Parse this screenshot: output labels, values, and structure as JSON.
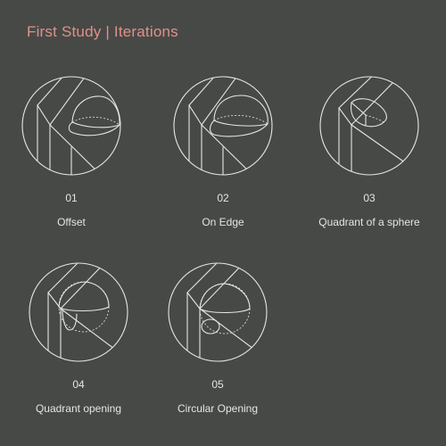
{
  "title": "First Study | Iterations",
  "iterations": [
    {
      "number": "01",
      "label": "Offset"
    },
    {
      "number": "02",
      "label": "On Edge"
    },
    {
      "number": "03",
      "label": "Quadrant of a sphere"
    },
    {
      "number": "04",
      "label": "Quadrant opening"
    },
    {
      "number": "05",
      "label": "Circular Opening"
    }
  ],
  "colors": {
    "background": "#474946",
    "title": "#e0918a",
    "line": "#e6e6e1"
  }
}
